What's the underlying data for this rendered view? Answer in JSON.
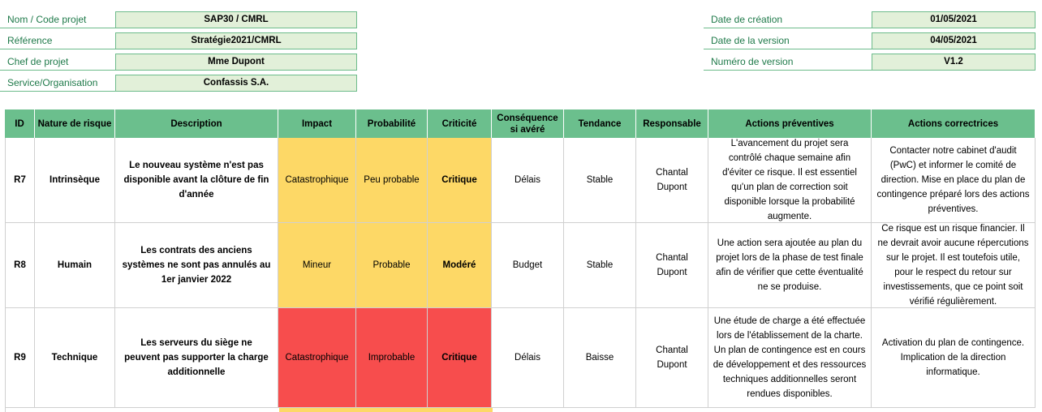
{
  "header": {
    "left": [
      {
        "label": "Nom / Code projet",
        "value": "SAP30 / CMRL"
      },
      {
        "label": "Référence",
        "value": "Stratégie2021/CMRL"
      },
      {
        "label": "Chef de projet",
        "value": "Mme Dupont"
      },
      {
        "label": "Service/Organisation",
        "value": "Confassis S.A."
      }
    ],
    "right": [
      {
        "label": "Date de création",
        "value": "01/05/2021"
      },
      {
        "label": "Date de la version",
        "value": "04/05/2021"
      },
      {
        "label": "Numéro de version",
        "value": "V1.2"
      }
    ]
  },
  "table": {
    "columns": [
      "ID",
      "Nature de risque",
      "Description",
      "Impact",
      "Probabilité",
      "Criticité",
      "Conséquence si avéré",
      "Tendance",
      "Responsable",
      "Actions préventives",
      "Actions correctrices"
    ],
    "rows": [
      {
        "id": "R7",
        "nature": "Intrinsèque",
        "description": "Le nouveau système n'est pas disponible avant la clôture de fin d'année",
        "impact": "Catastrophique",
        "probability": "Peu probable",
        "criticity": "Critique",
        "consequence": "Délais",
        "trend": "Stable",
        "owner": "Chantal Dupont",
        "preventive": "L'avancement du projet sera contrôlé chaque semaine afin d'éviter ce risque. Il est essentiel qu'un plan de correction soit disponible lorsque la probabilité augmente.",
        "corrective": "Contacter notre cabinet d'audit (PwC) et informer le comité de direction. Mise en place du plan de contingence préparé lors des actions préventives.",
        "color": "#fdd866"
      },
      {
        "id": "R8",
        "nature": "Humain",
        "description": "Les contrats des anciens systèmes ne sont pas annulés au 1er janvier 2022",
        "impact": "Mineur",
        "probability": "Probable",
        "criticity": "Modéré",
        "consequence": "Budget",
        "trend": "Stable",
        "owner": "Chantal Dupont",
        "preventive": "Une action sera ajoutée au plan du projet lors de la phase de test finale afin de vérifier que cette éventualité ne se produise.",
        "corrective": "Ce risque est un risque financier. Il ne devrait avoir aucune répercutions sur le projet. Il est toutefois utile, pour le respect du retour sur investissements, que ce point soit vérifié régulièrement.",
        "color": "#fdd866"
      },
      {
        "id": "R9",
        "nature": "Technique",
        "description": "Les serveurs du siège ne peuvent pas supporter la charge additionnelle",
        "impact": "Catastrophique",
        "probability": "Improbable",
        "criticity": "Critique",
        "consequence": "Délais",
        "trend": "Baisse",
        "owner": "Chantal Dupont",
        "preventive": "Une étude de charge a été effectuée lors de l'établissement de la charte. Un plan de contingence est en cours de développement et des ressources techniques additionnelles seront rendues disponibles.",
        "corrective": "Activation du plan de contingence. Implication de la direction informatique.",
        "color": "#f74d4d"
      }
    ]
  }
}
